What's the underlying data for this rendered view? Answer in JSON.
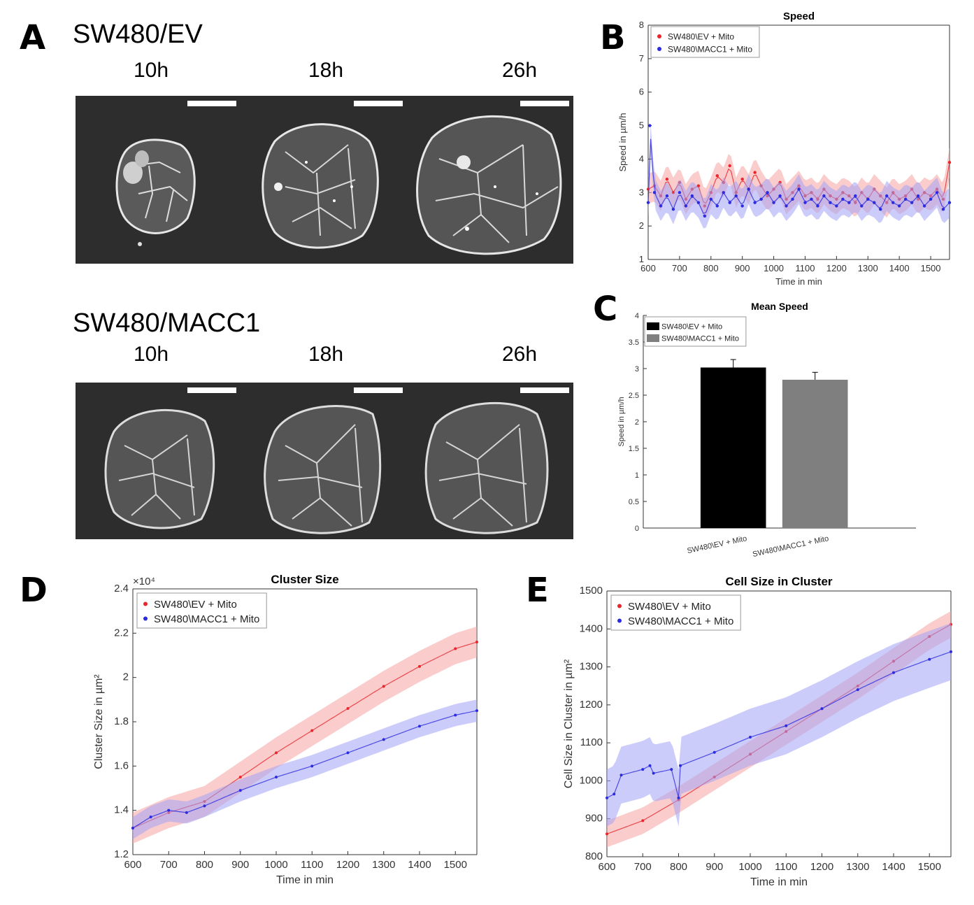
{
  "panel_letters": {
    "a": "A",
    "b": "B",
    "c": "C",
    "d": "D",
    "e": "E"
  },
  "panel_a": {
    "rows": [
      {
        "title": "SW480/EV",
        "times": [
          "10h",
          "18h",
          "26h"
        ]
      },
      {
        "title": "SW480/MACC1",
        "times": [
          "10h",
          "18h",
          "26h"
        ]
      }
    ]
  },
  "colors": {
    "ev": "#e8262b",
    "macc1": "#2b2be0",
    "ev_band": "#f5a3a3",
    "macc1_band": "#a3a3f5",
    "bar_ev": "#000000",
    "bar_macc1": "#7f7f7f"
  },
  "chart_data": [
    {
      "id": "speed",
      "type": "line",
      "title": "Speed",
      "xlabel": "Time in min",
      "ylabel": "Speed in µm/h",
      "xlim": [
        600,
        1560
      ],
      "ylim": [
        1,
        8
      ],
      "xticks": [
        600,
        700,
        800,
        900,
        1000,
        1100,
        1200,
        1300,
        1400,
        1500
      ],
      "yticks": [
        1,
        2,
        3,
        4,
        5,
        6,
        7,
        8
      ],
      "legend_position": "top-left",
      "series": [
        {
          "name": "SW480\\EV + Mito",
          "color_key": "ev",
          "description": "noisy, mean ~3.0 with ±0.5 band",
          "points": [
            [
              600,
              3.1
            ],
            [
              620,
              3.2
            ],
            [
              640,
              2.9
            ],
            [
              660,
              3.4
            ],
            [
              680,
              3.0
            ],
            [
              700,
              3.3
            ],
            [
              720,
              2.8
            ],
            [
              740,
              3.1
            ],
            [
              760,
              3.2
            ],
            [
              780,
              2.6
            ],
            [
              800,
              3.0
            ],
            [
              820,
              3.5
            ],
            [
              840,
              3.3
            ],
            [
              860,
              3.8
            ],
            [
              880,
              3.0
            ],
            [
              900,
              3.4
            ],
            [
              920,
              3.1
            ],
            [
              940,
              3.6
            ],
            [
              960,
              3.2
            ],
            [
              980,
              2.9
            ],
            [
              1000,
              3.1
            ],
            [
              1020,
              3.3
            ],
            [
              1040,
              2.8
            ],
            [
              1060,
              3.0
            ],
            [
              1080,
              3.2
            ],
            [
              1100,
              2.9
            ],
            [
              1120,
              3.0
            ],
            [
              1140,
              2.8
            ],
            [
              1160,
              3.1
            ],
            [
              1180,
              2.9
            ],
            [
              1200,
              2.8
            ],
            [
              1220,
              3.0
            ],
            [
              1240,
              2.9
            ],
            [
              1260,
              2.7
            ],
            [
              1280,
              3.0
            ],
            [
              1300,
              2.8
            ],
            [
              1320,
              3.1
            ],
            [
              1340,
              2.9
            ],
            [
              1360,
              2.7
            ],
            [
              1380,
              3.0
            ],
            [
              1400,
              2.8
            ],
            [
              1420,
              2.9
            ],
            [
              1440,
              3.1
            ],
            [
              1460,
              2.8
            ],
            [
              1480,
              3.0
            ],
            [
              1500,
              2.9
            ],
            [
              1520,
              3.1
            ],
            [
              1540,
              2.8
            ],
            [
              1560,
              3.9
            ]
          ]
        },
        {
          "name": "SW480\\MACC1 + Mito",
          "color_key": "macc1",
          "description": "noisy, mean ~2.8 with ±0.5 band, spike to 5 at start",
          "points": [
            [
              600,
              2.7
            ],
            [
              605,
              5.0
            ],
            [
              620,
              3.0
            ],
            [
              640,
              2.6
            ],
            [
              660,
              2.9
            ],
            [
              680,
              2.5
            ],
            [
              700,
              3.0
            ],
            [
              720,
              2.6
            ],
            [
              740,
              2.9
            ],
            [
              760,
              2.7
            ],
            [
              780,
              2.3
            ],
            [
              800,
              2.8
            ],
            [
              820,
              2.6
            ],
            [
              840,
              3.0
            ],
            [
              860,
              2.7
            ],
            [
              880,
              2.9
            ],
            [
              900,
              2.6
            ],
            [
              920,
              3.1
            ],
            [
              940,
              2.7
            ],
            [
              960,
              2.8
            ],
            [
              980,
              3.0
            ],
            [
              1000,
              2.7
            ],
            [
              1020,
              2.9
            ],
            [
              1040,
              2.6
            ],
            [
              1060,
              2.8
            ],
            [
              1080,
              3.1
            ],
            [
              1100,
              2.7
            ],
            [
              1120,
              2.8
            ],
            [
              1140,
              2.6
            ],
            [
              1160,
              2.9
            ],
            [
              1180,
              2.7
            ],
            [
              1200,
              2.6
            ],
            [
              1220,
              2.8
            ],
            [
              1240,
              2.7
            ],
            [
              1260,
              2.9
            ],
            [
              1280,
              2.6
            ],
            [
              1300,
              2.8
            ],
            [
              1320,
              2.7
            ],
            [
              1340,
              2.5
            ],
            [
              1360,
              2.9
            ],
            [
              1380,
              2.7
            ],
            [
              1400,
              2.6
            ],
            [
              1420,
              2.8
            ],
            [
              1440,
              2.7
            ],
            [
              1460,
              2.9
            ],
            [
              1480,
              2.6
            ],
            [
              1500,
              2.8
            ],
            [
              1520,
              3.0
            ],
            [
              1540,
              2.5
            ],
            [
              1560,
              2.7
            ]
          ]
        }
      ]
    },
    {
      "id": "mean_speed",
      "type": "bar",
      "title": "Mean Speed",
      "ylabel": "Speed in µm/h",
      "ylim": [
        0,
        4
      ],
      "yticks": [
        0,
        0.5,
        1,
        1.5,
        2,
        2.5,
        3,
        3.5,
        4
      ],
      "legend_position": "top-left",
      "categories": [
        "SW480\\EV + Mito",
        "SW480\\MACC1 + Mito"
      ],
      "values": [
        3.02,
        2.79
      ],
      "errors": [
        0.15,
        0.14
      ]
    },
    {
      "id": "cluster_size",
      "type": "line",
      "title": "Cluster Size",
      "xlabel": "Time in min",
      "ylabel": "Cluster Size in µm²",
      "y_multiplier": "×10⁴",
      "xlim": [
        600,
        1560
      ],
      "ylim": [
        1.2,
        2.4
      ],
      "xticks": [
        600,
        700,
        800,
        900,
        1000,
        1100,
        1200,
        1300,
        1400,
        1500
      ],
      "yticks": [
        1.2,
        1.4,
        1.6,
        1.8,
        2,
        2.2,
        2.4
      ],
      "legend_position": "top-left",
      "series": [
        {
          "name": "SW480\\EV + Mito",
          "color_key": "ev",
          "points": [
            [
              600,
              1.32
            ],
            [
              700,
              1.39
            ],
            [
              800,
              1.44
            ],
            [
              900,
              1.55
            ],
            [
              1000,
              1.66
            ],
            [
              1100,
              1.76
            ],
            [
              1200,
              1.86
            ],
            [
              1300,
              1.96
            ],
            [
              1400,
              2.05
            ],
            [
              1500,
              2.13
            ],
            [
              1560,
              2.16
            ]
          ],
          "band": 0.07
        },
        {
          "name": "SW480\\MACC1 + Mito",
          "color_key": "macc1",
          "points": [
            [
              600,
              1.32
            ],
            [
              650,
              1.37
            ],
            [
              700,
              1.4
            ],
            [
              750,
              1.39
            ],
            [
              800,
              1.42
            ],
            [
              900,
              1.49
            ],
            [
              1000,
              1.55
            ],
            [
              1100,
              1.6
            ],
            [
              1200,
              1.66
            ],
            [
              1300,
              1.72
            ],
            [
              1400,
              1.78
            ],
            [
              1500,
              1.83
            ],
            [
              1560,
              1.85
            ]
          ],
          "band": 0.05
        }
      ]
    },
    {
      "id": "cell_size",
      "type": "line",
      "title": "Cell Size in Cluster",
      "xlabel": "Time in min",
      "ylabel": "Cell Size in Cluster in µm²",
      "xlim": [
        600,
        1560
      ],
      "ylim": [
        800,
        1500
      ],
      "xticks": [
        600,
        700,
        800,
        900,
        1000,
        1100,
        1200,
        1300,
        1400,
        1500
      ],
      "yticks": [
        800,
        900,
        1000,
        1100,
        1200,
        1300,
        1400,
        1500
      ],
      "legend_position": "top-left",
      "series": [
        {
          "name": "SW480\\EV + Mito",
          "color_key": "ev",
          "points": [
            [
              600,
              860
            ],
            [
              700,
              895
            ],
            [
              800,
              950
            ],
            [
              900,
              1010
            ],
            [
              1000,
              1070
            ],
            [
              1100,
              1130
            ],
            [
              1200,
              1190
            ],
            [
              1300,
              1250
            ],
            [
              1400,
              1315
            ],
            [
              1500,
              1380
            ],
            [
              1560,
              1412
            ]
          ],
          "band": 35
        },
        {
          "name": "SW480\\MACC1 + Mito",
          "color_key": "macc1",
          "points": [
            [
              600,
              955
            ],
            [
              620,
              965
            ],
            [
              640,
              1015
            ],
            [
              700,
              1030
            ],
            [
              720,
              1040
            ],
            [
              730,
              1020
            ],
            [
              780,
              1030
            ],
            [
              800,
              955
            ],
            [
              805,
              1040
            ],
            [
              900,
              1075
            ],
            [
              1000,
              1115
            ],
            [
              1100,
              1145
            ],
            [
              1200,
              1190
            ],
            [
              1300,
              1240
            ],
            [
              1400,
              1285
            ],
            [
              1500,
              1320
            ],
            [
              1560,
              1340
            ]
          ],
          "band": 75
        }
      ]
    }
  ]
}
